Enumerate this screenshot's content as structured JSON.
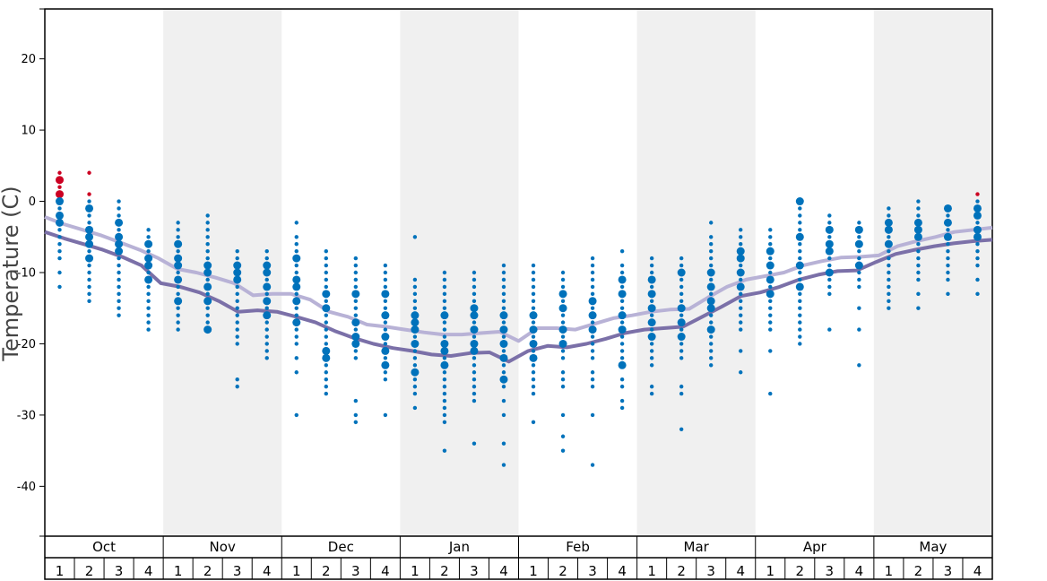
{
  "chart_data": {
    "type": "scatter",
    "title": "",
    "xlabel": "",
    "ylabel": "Temperature (C)",
    "ylim": [
      -47,
      27
    ],
    "yticks": [
      20,
      10,
      0,
      -10,
      -20,
      -30,
      -40
    ],
    "months": [
      "Oct",
      "Nov",
      "Dec",
      "Jan",
      "Feb",
      "Mar",
      "Apr",
      "May"
    ],
    "weeks": [
      "1",
      "2",
      "3",
      "4"
    ],
    "shaded_months": [
      "Nov",
      "Jan",
      "Mar",
      "May"
    ],
    "colors": {
      "observed": "#0072bb",
      "warm": "#cc0022",
      "line_light": "#b8b2d6",
      "line_dark": "#7b70a8",
      "shade": "#f0f0f0"
    },
    "series": [
      {
        "values": [
          -2.2,
          -3.2,
          -4.0,
          -4.8,
          -5.8,
          -6.8,
          -8.0,
          -9.5,
          -10.0,
          -10.7,
          -11.5,
          -13.2,
          -13.0,
          -13.0,
          -13.8,
          -15.5,
          -16.2,
          -17.3,
          -17.6,
          -18.0,
          -18.4,
          -18.7,
          -18.7,
          -18.5,
          -18.3,
          -19.6,
          -17.8,
          -17.8,
          -18.0,
          -17.2,
          -16.4,
          -16.0,
          -15.5,
          -15.2,
          -15.1,
          -13.5,
          -12.0,
          -11.0,
          -10.5,
          -10.0,
          -9.0,
          -8.4,
          -7.9,
          -7.8,
          -7.6,
          -6.3,
          -5.6,
          -5.0,
          -4.3,
          -4.0,
          -3.7
        ]
      },
      {
        "values": [
          -4.3,
          -5.2,
          -6.0,
          -6.8,
          -7.8,
          -9.0,
          -11.5,
          -12.0,
          -12.8,
          -14.0,
          -15.5,
          -15.3,
          -15.5,
          -16.2,
          -17.0,
          -18.2,
          -19.2,
          -20.0,
          -20.6,
          -21.0,
          -21.5,
          -21.7,
          -21.3,
          -21.2,
          -22.5,
          -21.0,
          -20.3,
          -20.5,
          -20.0,
          -19.3,
          -18.5,
          -18.0,
          -17.8,
          -17.6,
          -16.2,
          -14.8,
          -13.3,
          -12.8,
          -12.0,
          -11.0,
          -10.3,
          -9.8,
          -9.7,
          -8.5,
          -7.4,
          -6.8,
          -6.3,
          -5.9,
          -5.6,
          -5.4
        ]
      }
    ],
    "observations": [
      {
        "slot": 1,
        "values": [
          1,
          2,
          3,
          4,
          0,
          -1,
          -2,
          -3,
          -4,
          -5,
          -6,
          -7,
          -8,
          -10,
          -12
        ],
        "major": [
          0,
          -2,
          -3,
          1,
          3
        ],
        "warm": [
          1,
          2,
          3,
          4
        ]
      },
      {
        "slot": 2,
        "values": [
          1,
          0,
          -1,
          -2,
          -3,
          -4,
          -5,
          -6,
          -7,
          -8,
          -9,
          -10,
          -11,
          -12,
          -13,
          -14,
          4
        ],
        "major": [
          -4,
          -5,
          -6,
          -1,
          -8
        ],
        "warm": [
          1,
          4
        ]
      },
      {
        "slot": 3,
        "values": [
          0,
          -1,
          -2,
          -3,
          -4,
          -5,
          -6,
          -7,
          -8,
          -9,
          -10,
          -11,
          -12,
          -13,
          -14,
          -15,
          -16
        ],
        "major": [
          -3,
          -5,
          -6,
          -7
        ],
        "warm": []
      },
      {
        "slot": 4,
        "values": [
          -4,
          -5,
          -6,
          -7,
          -8,
          -9,
          -10,
          -11,
          -12,
          -13,
          -14,
          -15,
          -16,
          -17,
          -18
        ],
        "major": [
          -6,
          -8,
          -9,
          -11
        ],
        "warm": []
      },
      {
        "slot": 5,
        "values": [
          -3,
          -4,
          -5,
          -6,
          -7,
          -8,
          -9,
          -10,
          -11,
          -12,
          -13,
          -14,
          -15,
          -16,
          -17,
          -18
        ],
        "major": [
          -6,
          -8,
          -9,
          -11,
          -14
        ],
        "warm": []
      },
      {
        "slot": 6,
        "values": [
          -2,
          -3,
          -4,
          -5,
          -6,
          -7,
          -8,
          -9,
          -10,
          -11,
          -12,
          -13,
          -14,
          -15,
          -16,
          -17,
          -18
        ],
        "major": [
          -9,
          -10,
          -12,
          -14,
          -18
        ],
        "warm": []
      },
      {
        "slot": 7,
        "values": [
          -7,
          -8,
          -9,
          -10,
          -11,
          -12,
          -13,
          -14,
          -15,
          -16,
          -17,
          -18,
          -19,
          -20,
          -25,
          -26
        ],
        "major": [
          -9,
          -10,
          -11
        ],
        "warm": []
      },
      {
        "slot": 8,
        "values": [
          -7,
          -8,
          -9,
          -10,
          -11,
          -12,
          -13,
          -14,
          -15,
          -16,
          -17,
          -18,
          -19,
          -20,
          -21,
          -22
        ],
        "major": [
          -9,
          -10,
          -12,
          -14,
          -16
        ],
        "warm": []
      },
      {
        "slot": 9,
        "values": [
          -3,
          -5,
          -6,
          -7,
          -8,
          -9,
          -10,
          -11,
          -12,
          -13,
          -14,
          -15,
          -16,
          -17,
          -18,
          -19,
          -20,
          -22,
          -24,
          -30
        ],
        "major": [
          -8,
          -11,
          -12,
          -14,
          -17
        ],
        "warm": []
      },
      {
        "slot": 10,
        "values": [
          -7,
          -8,
          -9,
          -10,
          -11,
          -12,
          -13,
          -14,
          -15,
          -16,
          -17,
          -18,
          -19,
          -20,
          -21,
          -22,
          -23,
          -24,
          -25,
          -26,
          -27
        ],
        "major": [
          -13,
          -15,
          -21,
          -22
        ],
        "warm": []
      },
      {
        "slot": 11,
        "values": [
          -8,
          -9,
          -10,
          -11,
          -12,
          -13,
          -14,
          -15,
          -16,
          -17,
          -18,
          -19,
          -20,
          -21,
          -22,
          -28,
          -30,
          -31
        ],
        "major": [
          -13,
          -17,
          -19,
          -20
        ],
        "warm": []
      },
      {
        "slot": 12,
        "values": [
          -9,
          -10,
          -11,
          -12,
          -13,
          -14,
          -15,
          -16,
          -17,
          -18,
          -19,
          -20,
          -21,
          -22,
          -23,
          -24,
          -25,
          -30
        ],
        "major": [
          -13,
          -16,
          -19,
          -21,
          -23
        ],
        "warm": []
      },
      {
        "slot": 13,
        "values": [
          -5,
          -11,
          -12,
          -13,
          -14,
          -15,
          -16,
          -17,
          -18,
          -19,
          -20,
          -21,
          -22,
          -23,
          -24,
          -25,
          -26,
          -27,
          -29
        ],
        "major": [
          -16,
          -17,
          -18,
          -20,
          -24
        ],
        "warm": []
      },
      {
        "slot": 14,
        "values": [
          -10,
          -11,
          -12,
          -13,
          -14,
          -15,
          -16,
          -17,
          -18,
          -19,
          -20,
          -21,
          -22,
          -23,
          -24,
          -25,
          -26,
          -27,
          -28,
          -29,
          -30,
          -31,
          -35
        ],
        "major": [
          -16,
          -20,
          -21,
          -23
        ],
        "warm": []
      },
      {
        "slot": 15,
        "values": [
          -10,
          -11,
          -12,
          -13,
          -14,
          -15,
          -16,
          -17,
          -18,
          -19,
          -20,
          -21,
          -22,
          -23,
          -24,
          -25,
          -26,
          -27,
          -28,
          -34
        ],
        "major": [
          -15,
          -16,
          -18,
          -20,
          -21
        ],
        "warm": []
      },
      {
        "slot": 16,
        "values": [
          -9,
          -10,
          -11,
          -12,
          -13,
          -14,
          -15,
          -16,
          -17,
          -18,
          -19,
          -20,
          -21,
          -22,
          -23,
          -24,
          -25,
          -26,
          -28,
          -30,
          -34,
          -37
        ],
        "major": [
          -16,
          -18,
          -20,
          -22,
          -25
        ],
        "warm": []
      },
      {
        "slot": 17,
        "values": [
          -9,
          -10,
          -11,
          -12,
          -13,
          -14,
          -15,
          -16,
          -17,
          -18,
          -19,
          -20,
          -21,
          -22,
          -23,
          -24,
          -25,
          -26,
          -27,
          -31
        ],
        "major": [
          -16,
          -18,
          -20,
          -22
        ],
        "warm": []
      },
      {
        "slot": 18,
        "values": [
          -10,
          -11,
          -12,
          -13,
          -14,
          -15,
          -16,
          -17,
          -18,
          -19,
          -20,
          -21,
          -22,
          -24,
          -25,
          -26,
          -30,
          -33,
          -35
        ],
        "major": [
          -13,
          -15,
          -18,
          -20
        ],
        "warm": []
      },
      {
        "slot": 19,
        "values": [
          -8,
          -9,
          -10,
          -11,
          -12,
          -13,
          -14,
          -15,
          -16,
          -17,
          -18,
          -19,
          -20,
          -21,
          -22,
          -24,
          -25,
          -26,
          -30,
          -37
        ],
        "major": [
          -14,
          -16,
          -18
        ],
        "warm": []
      },
      {
        "slot": 20,
        "values": [
          -7,
          -9,
          -10,
          -11,
          -12,
          -13,
          -14,
          -15,
          -16,
          -17,
          -18,
          -19,
          -20,
          -21,
          -22,
          -23,
          -25,
          -26,
          -28,
          -29
        ],
        "major": [
          -11,
          -13,
          -16,
          -18,
          -23
        ],
        "warm": []
      },
      {
        "slot": 21,
        "values": [
          -8,
          -9,
          -10,
          -11,
          -12,
          -13,
          -14,
          -15,
          -16,
          -17,
          -18,
          -19,
          -20,
          -21,
          -22,
          -23,
          -26,
          -27
        ],
        "major": [
          -11,
          -13,
          -15,
          -17,
          -19
        ],
        "warm": []
      },
      {
        "slot": 22,
        "values": [
          -8,
          -9,
          -10,
          -11,
          -12,
          -13,
          -14,
          -15,
          -16,
          -17,
          -18,
          -19,
          -20,
          -21,
          -22,
          -26,
          -27,
          -32
        ],
        "major": [
          -10,
          -15,
          -17,
          -19
        ],
        "warm": []
      },
      {
        "slot": 23,
        "values": [
          -3,
          -5,
          -6,
          -7,
          -8,
          -9,
          -10,
          -11,
          -12,
          -13,
          -14,
          -15,
          -16,
          -17,
          -18,
          -19,
          -20,
          -21,
          -22,
          -23
        ],
        "major": [
          -10,
          -12,
          -14,
          -15,
          -18
        ],
        "warm": []
      },
      {
        "slot": 24,
        "values": [
          -4,
          -5,
          -6,
          -7,
          -8,
          -9,
          -10,
          -11,
          -12,
          -13,
          -14,
          -15,
          -16,
          -17,
          -18,
          -21,
          -24
        ],
        "major": [
          -7,
          -8,
          -10,
          -12
        ],
        "warm": []
      },
      {
        "slot": 25,
        "values": [
          -4,
          -5,
          -6,
          -7,
          -8,
          -9,
          -10,
          -11,
          -12,
          -13,
          -14,
          -15,
          -16,
          -17,
          -18,
          -21,
          -27
        ],
        "major": [
          -7,
          -9,
          -11,
          -13
        ],
        "warm": []
      },
      {
        "slot": 26,
        "values": [
          0,
          -1,
          -2,
          -3,
          -4,
          -5,
          -6,
          -7,
          -8,
          -9,
          -10,
          -11,
          -12,
          -13,
          -14,
          -15,
          -16,
          -17,
          -18,
          -19,
          -20
        ],
        "major": [
          0,
          -5,
          -9,
          -12
        ],
        "warm": []
      },
      {
        "slot": 27,
        "values": [
          -2,
          -3,
          -4,
          -5,
          -6,
          -7,
          -8,
          -9,
          -10,
          -11,
          -12,
          -13,
          -18
        ],
        "major": [
          -4,
          -6,
          -7,
          -10
        ],
        "warm": []
      },
      {
        "slot": 28,
        "values": [
          -3,
          -4,
          -5,
          -6,
          -7,
          -8,
          -9,
          -10,
          -11,
          -12,
          -15,
          -18,
          -23
        ],
        "major": [
          -4,
          -6,
          -9
        ],
        "warm": []
      },
      {
        "slot": 29,
        "values": [
          -1,
          -2,
          -3,
          -4,
          -5,
          -6,
          -7,
          -8,
          -9,
          -10,
          -11,
          -12,
          -13,
          -14,
          -15
        ],
        "major": [
          -3,
          -4,
          -6
        ],
        "warm": []
      },
      {
        "slot": 30,
        "values": [
          0,
          -1,
          -2,
          -3,
          -4,
          -5,
          -6,
          -7,
          -8,
          -9,
          -10,
          -11,
          -13,
          -15
        ],
        "major": [
          -3,
          -4,
          -5
        ],
        "warm": []
      },
      {
        "slot": 31,
        "values": [
          -1,
          -2,
          -3,
          -4,
          -5,
          -6,
          -7,
          -8,
          -9,
          -10,
          -11,
          -13
        ],
        "major": [
          -1,
          -3,
          -5
        ],
        "warm": []
      },
      {
        "slot": 32,
        "values": [
          1,
          0,
          -1,
          -2,
          -3,
          -4,
          -5,
          -6,
          -7,
          -8,
          -9,
          -11,
          -13
        ],
        "major": [
          -1,
          -2,
          -4,
          -5
        ],
        "warm": [
          1
        ]
      }
    ]
  }
}
